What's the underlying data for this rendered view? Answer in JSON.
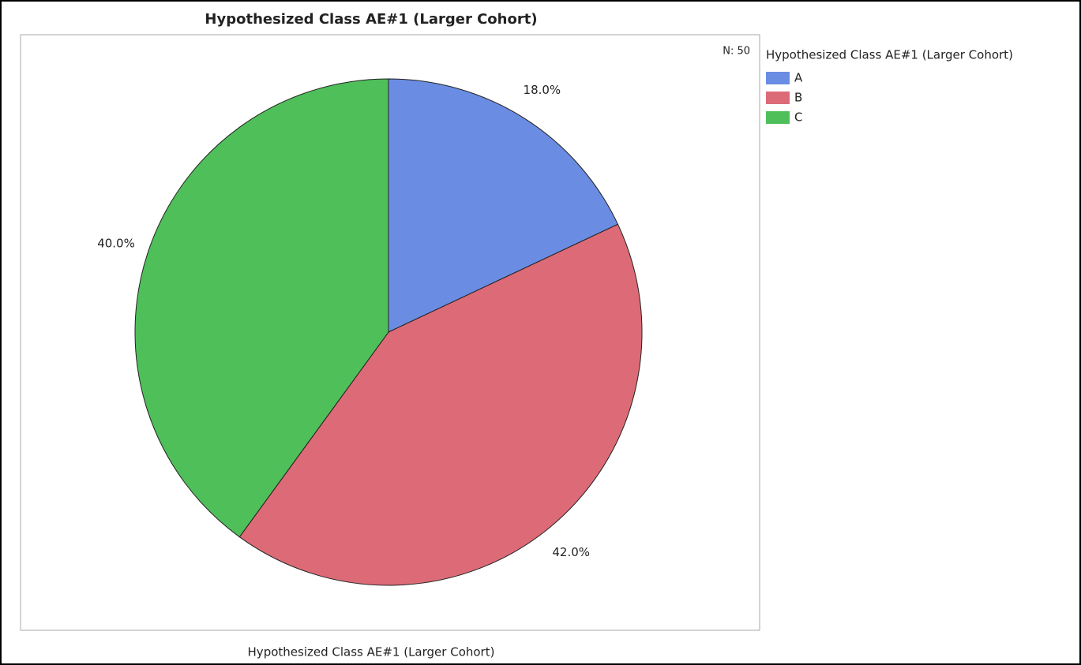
{
  "chart_data": {
    "type": "pie",
    "title": "Hypothesized Class AE#1 (Larger Cohort)",
    "categories": [
      "A",
      "B",
      "C"
    ],
    "values": [
      18,
      42,
      40
    ],
    "value_labels": [
      "18.0%",
      "42.0%",
      "40.0%"
    ],
    "colors": [
      "#6a8de3",
      "#dc6b77",
      "#4fbf5a"
    ],
    "annotation": "N: 50",
    "legend_title": "Hypothesized Class AE#1 (Larger Cohort)",
    "legend": "right",
    "x_label": "Hypothesized Class AE#1 (Larger Cohort)"
  }
}
